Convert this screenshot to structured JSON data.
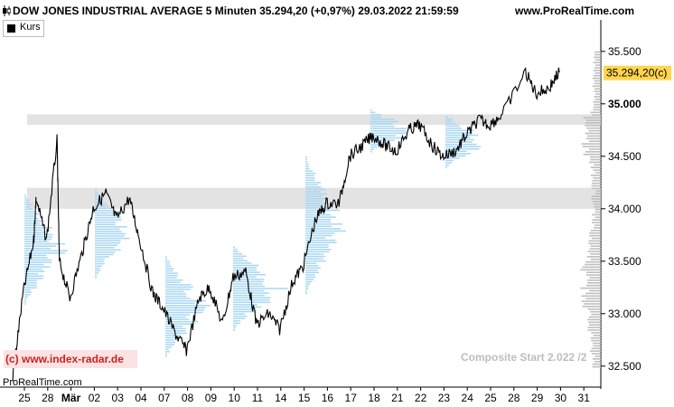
{
  "header": {
    "left": "DOW JONES INDUSTRIAL AVERAGE 5 Minuten 35.294,20 (+0,97%) 29.03.2022 21:59:59",
    "right": "www.ProRealTime.com",
    "icon": "candlestick-icon"
  },
  "legend": {
    "label": "Kurs",
    "swatch_color": "#000000"
  },
  "watermark": {
    "copyright": "(c) www.index-radar.de",
    "composite": "Composite Start 2.022 /2",
    "provider": "ProRealTime.com"
  },
  "colors": {
    "price_line": "#000000",
    "volume_profile": "#a9d7f2",
    "value_zone": "#d9d9d9",
    "price_tag": "#ffd54f"
  },
  "chart_data": {
    "type": "line",
    "title": "DOW JONES INDUSTRIAL AVERAGE 5 Minuten",
    "series": [
      {
        "name": "Kurs",
        "points": [
          [
            "25",
            32400
          ],
          [
            "25",
            33200
          ],
          [
            "25",
            33700
          ],
          [
            "28",
            34100
          ],
          [
            "28",
            33700
          ],
          [
            "Mär",
            33500
          ],
          [
            "Mär",
            33150
          ],
          [
            "02",
            33600
          ],
          [
            "02",
            34000
          ],
          [
            "03",
            34150
          ],
          [
            "03",
            33900
          ],
          [
            "04",
            34100
          ],
          [
            "04",
            33700
          ],
          [
            "07",
            33200
          ],
          [
            "07",
            33050
          ],
          [
            "08",
            32800
          ],
          [
            "08",
            32650
          ],
          [
            "09",
            33150
          ],
          [
            "09",
            33250
          ],
          [
            "10",
            32900
          ],
          [
            "10",
            33350
          ],
          [
            "11",
            33400
          ],
          [
            "11",
            32900
          ],
          [
            "14",
            33000
          ],
          [
            "14",
            32850
          ],
          [
            "15",
            33300
          ],
          [
            "15",
            33450
          ],
          [
            "16",
            33900
          ],
          [
            "16",
            34050
          ],
          [
            "17",
            34050
          ],
          [
            "17",
            34500
          ],
          [
            "18",
            34600
          ],
          [
            "18",
            34700
          ],
          [
            "21",
            34600
          ],
          [
            "21",
            34550
          ],
          [
            "22",
            34750
          ],
          [
            "22",
            34800
          ],
          [
            "23",
            34600
          ],
          [
            "23",
            34500
          ],
          [
            "24",
            34550
          ],
          [
            "24",
            34700
          ],
          [
            "25",
            34850
          ],
          [
            "25",
            34800
          ],
          [
            "28",
            34650
          ],
          [
            "28",
            34900
          ],
          [
            "29",
            35300
          ],
          [
            "29",
            35100
          ],
          [
            "30",
            35150
          ],
          [
            "30",
            35300
          ]
        ]
      }
    ],
    "x_tick_labels": [
      "25",
      "28",
      "Mär",
      "02",
      "03",
      "04",
      "07",
      "08",
      "09",
      "10",
      "11",
      "14",
      "15",
      "16",
      "17",
      "18",
      "21",
      "22",
      "23",
      "24",
      "25",
      "28",
      "29",
      "30",
      "31"
    ],
    "y_tick_labels": [
      "35.500",
      "35.000",
      "34.500",
      "34.000",
      "33.500",
      "33.000",
      "32.500"
    ],
    "ylim": [
      32300,
      35800
    ],
    "last_price_label": "35.294,20(c)",
    "last_price": 35294.2,
    "value_zones": [
      [
        34000,
        34200
      ],
      [
        34800,
        34900
      ]
    ],
    "volume_profile": "horizontal"
  }
}
